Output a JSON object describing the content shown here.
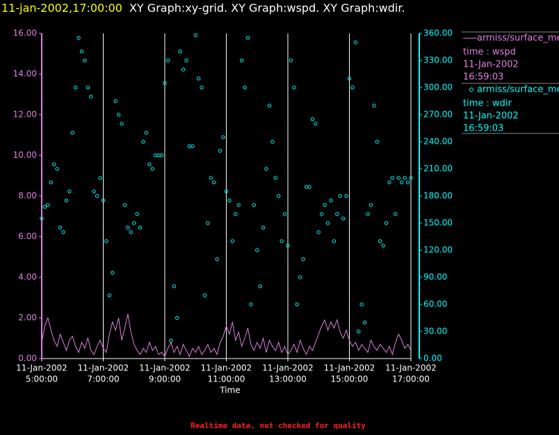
{
  "chart_data": {
    "type": "scatter",
    "title_time": "11-jan-2002,17:00:00",
    "title": "XY Graph:xy-grid.  XY Graph:wspd.  XY Graph:wdir.",
    "xlabel": "Time",
    "footer": "Realtime data, not checked for quality",
    "grid": true,
    "xlim": [
      5,
      17
    ],
    "xticks": [
      {
        "value": 5,
        "label": "5:00:00",
        "date": "11-Jan-2002"
      },
      {
        "value": 7,
        "label": "7:00:00",
        "date": "11-Jan-2002"
      },
      {
        "value": 9,
        "label": "9:00:00",
        "date": "11-Jan-2002"
      },
      {
        "value": 11,
        "label": "11:00:00",
        "date": "11-Jan-2002"
      },
      {
        "value": 13,
        "label": "13:00:00",
        "date": "11-Jan-2002"
      },
      {
        "value": 15,
        "label": "15:00:00",
        "date": "11-Jan-2002"
      },
      {
        "value": 17,
        "label": "17:00:00",
        "date": "11-Jan-2002"
      }
    ],
    "ylim": [
      0,
      16
    ],
    "yticks": [
      {
        "value": 0,
        "label": "0.00"
      },
      {
        "value": 2,
        "label": "2.00"
      },
      {
        "value": 4,
        "label": "4.00"
      },
      {
        "value": 6,
        "label": "6.00"
      },
      {
        "value": 8,
        "label": "8.00"
      },
      {
        "value": 10,
        "label": "10.00"
      },
      {
        "value": 12,
        "label": "12.00"
      },
      {
        "value": 14,
        "label": "14.00"
      },
      {
        "value": 16,
        "label": "16.00"
      }
    ],
    "y2lim": [
      0,
      360
    ],
    "y2ticks": [
      {
        "value": 0,
        "label": "0.00"
      },
      {
        "value": 30,
        "label": "30.00"
      },
      {
        "value": 60,
        "label": "60.00"
      },
      {
        "value": 90,
        "label": "90.00"
      },
      {
        "value": 120,
        "label": "120.00"
      },
      {
        "value": 150,
        "label": "150.00"
      },
      {
        "value": 180,
        "label": "180.00"
      },
      {
        "value": 210,
        "label": "210.00"
      },
      {
        "value": 240,
        "label": "240.00"
      },
      {
        "value": 270,
        "label": "270.00"
      },
      {
        "value": 300,
        "label": "300.00"
      },
      {
        "value": 330,
        "label": "330.00"
      },
      {
        "value": 360,
        "label": "360.00"
      }
    ],
    "x": [
      5,
      5.1,
      5.2,
      5.3,
      5.4,
      5.5,
      5.6,
      5.7,
      5.8,
      5.9,
      6,
      6.1,
      6.2,
      6.3,
      6.4,
      6.5,
      6.6,
      6.7,
      6.8,
      6.9,
      7,
      7.1,
      7.2,
      7.3,
      7.4,
      7.5,
      7.6,
      7.7,
      7.8,
      7.9,
      8,
      8.1,
      8.2,
      8.3,
      8.4,
      8.5,
      8.6,
      8.7,
      8.8,
      8.9,
      9,
      9.1,
      9.2,
      9.3,
      9.4,
      9.5,
      9.6,
      9.7,
      9.8,
      9.9,
      10,
      10.1,
      10.2,
      10.3,
      10.4,
      10.5,
      10.6,
      10.7,
      10.8,
      10.9,
      11,
      11.1,
      11.2,
      11.3,
      11.4,
      11.5,
      11.6,
      11.7,
      11.8,
      11.9,
      12,
      12.1,
      12.2,
      12.3,
      12.4,
      12.5,
      12.6,
      12.7,
      12.8,
      12.9,
      13,
      13.1,
      13.2,
      13.3,
      13.4,
      13.5,
      13.6,
      13.7,
      13.8,
      13.9,
      14,
      14.1,
      14.2,
      14.3,
      14.4,
      14.5,
      14.6,
      14.7,
      14.8,
      14.9,
      15,
      15.1,
      15.2,
      15.3,
      15.4,
      15.5,
      15.6,
      15.7,
      15.8,
      15.9,
      16,
      16.1,
      16.2,
      16.3,
      16.4,
      16.5,
      16.6,
      16.7,
      16.8,
      16.9,
      17
    ],
    "series": [
      {
        "name": "armiss/surface_me",
        "detail": [
          "time : wspd",
          "11-Jan-2002",
          "16:59:03"
        ],
        "style": "line",
        "color": "#e080e0",
        "axis": "y",
        "values": [
          0.8,
          1.6,
          2.0,
          1.4,
          0.9,
          0.6,
          1.2,
          0.8,
          0.4,
          0.9,
          1.1,
          0.6,
          0.3,
          0.8,
          0.5,
          1.0,
          0.4,
          0.2,
          0.6,
          0.9,
          0.5,
          0.3,
          1.2,
          1.8,
          1.4,
          2.0,
          0.9,
          1.5,
          2.2,
          1.3,
          0.7,
          0.4,
          0.2,
          0.5,
          0.3,
          0.8,
          0.4,
          0.6,
          0.2,
          0.3,
          0.1,
          0.5,
          0.8,
          0.3,
          0.6,
          0.2,
          0.7,
          0.4,
          0.1,
          0.5,
          0.3,
          0.6,
          0.2,
          0.4,
          0.7,
          0.3,
          0.5,
          0.2,
          0.8,
          1.1,
          1.6,
          1.2,
          1.8,
          0.9,
          1.3,
          0.6,
          1.0,
          1.5,
          0.7,
          0.4,
          0.8,
          0.5,
          1.0,
          0.3,
          0.9,
          0.6,
          0.4,
          0.8,
          0.3,
          0.6,
          0.2,
          0.4,
          0.7,
          0.3,
          0.9,
          0.5,
          0.2,
          0.6,
          0.4,
          0.8,
          1.2,
          1.6,
          1.9,
          1.4,
          1.8,
          1.5,
          1.9,
          1.3,
          1.0,
          1.4,
          0.9,
          0.6,
          0.8,
          0.4,
          0.7,
          0.5,
          0.3,
          0.9,
          0.6,
          0.4,
          0.7,
          0.5,
          0.3,
          0.6,
          0.2,
          0.8,
          1.2,
          0.9,
          0.5,
          0.7,
          0.4
        ]
      },
      {
        "name": "armiss/surface_me",
        "detail": [
          "time : wdir",
          "11-Jan-2002",
          "16:59:03"
        ],
        "style": "points",
        "color": "#00ffff",
        "axis": "y2",
        "values": [
          155,
          168,
          170,
          195,
          215,
          210,
          145,
          140,
          175,
          185,
          250,
          300,
          355,
          340,
          330,
          300,
          290,
          185,
          180,
          200,
          175,
          130,
          70,
          95,
          285,
          270,
          260,
          170,
          145,
          140,
          150,
          160,
          145,
          240,
          250,
          215,
          210,
          225,
          225,
          225,
          305,
          330,
          20,
          80,
          45,
          340,
          320,
          330,
          235,
          235,
          358,
          310,
          300,
          70,
          150,
          200,
          195,
          110,
          230,
          245,
          185,
          175,
          130,
          160,
          170,
          330,
          300,
          355,
          60,
          170,
          120,
          80,
          145,
          210,
          280,
          240,
          200,
          180,
          130,
          160,
          125,
          330,
          300,
          60,
          90,
          110,
          190,
          190,
          265,
          260,
          140,
          160,
          170,
          150,
          175,
          130,
          160,
          180,
          155,
          180,
          310,
          300,
          350,
          30,
          60,
          40,
          160,
          170,
          280,
          240,
          130,
          125,
          150,
          195,
          200,
          160,
          200,
          195,
          200,
          195,
          200
        ]
      }
    ]
  }
}
